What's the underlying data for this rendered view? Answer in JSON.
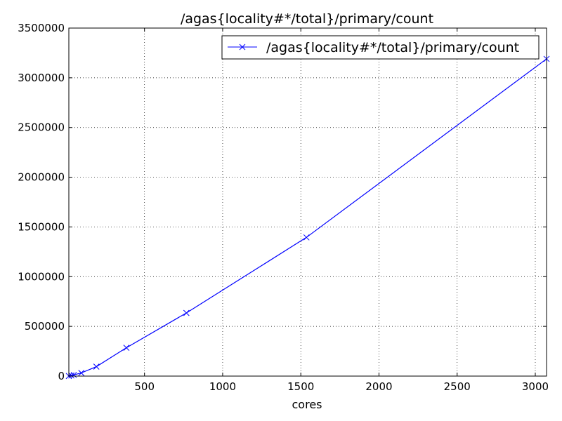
{
  "chart_data": {
    "type": "line",
    "title": "/agas{locality#*/total}/primary/count",
    "xlabel": "cores",
    "ylabel": "",
    "xlim": [
      16,
      3072
    ],
    "ylim": [
      0,
      3500000
    ],
    "xticks": [
      500,
      1000,
      1500,
      2000,
      2500,
      3000
    ],
    "yticks": [
      0,
      500000,
      1000000,
      1500000,
      2000000,
      2500000,
      3000000,
      3500000
    ],
    "grid": true,
    "legend": "top-right",
    "series": [
      {
        "name": "/agas{locality#*/total}/primary/count",
        "color": "#0000ff",
        "marker": "x",
        "x": [
          16,
          32,
          48,
          96,
          192,
          384,
          768,
          1536,
          3072
        ],
        "y": [
          1000,
          6000,
          12000,
          32000,
          95000,
          285000,
          635000,
          1395000,
          3190000
        ]
      }
    ]
  }
}
